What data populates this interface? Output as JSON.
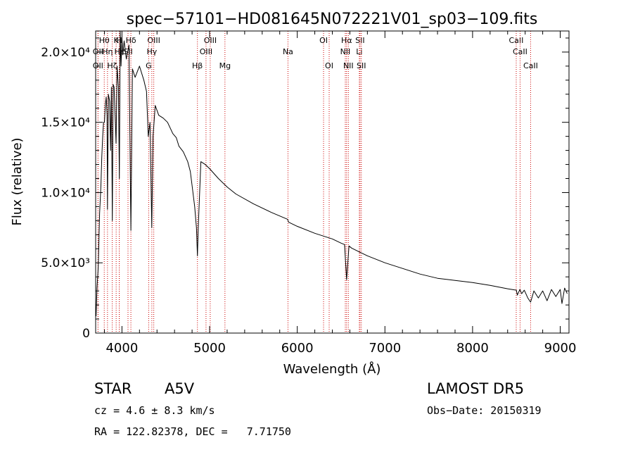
{
  "chart_data": {
    "type": "line",
    "title": "spec−57101−HD081645N072221V01_sp03−109.fits",
    "xlabel": "Wavelength (Å)",
    "ylabel": "Flux (relative)",
    "xlim": [
      3700,
      9100
    ],
    "ylim": [
      0,
      21500
    ],
    "x_ticks": [
      {
        "value": 4000,
        "label": "4000"
      },
      {
        "value": 5000,
        "label": "5000"
      },
      {
        "value": 6000,
        "label": "6000"
      },
      {
        "value": 7000,
        "label": "7000"
      },
      {
        "value": 8000,
        "label": "8000"
      },
      {
        "value": 9000,
        "label": "9000"
      }
    ],
    "y_ticks": [
      {
        "value": 0,
        "label": "0"
      },
      {
        "value": 5000,
        "label": "5.0×10³"
      },
      {
        "value": 10000,
        "label": "1.0×10⁴"
      },
      {
        "value": 15000,
        "label": "1.5×10⁴"
      },
      {
        "value": 20000,
        "label": "2.0×10⁴"
      }
    ],
    "grid": false,
    "line_color": "#000000",
    "marker_color": "#cc0000",
    "series": [
      {
        "x": [
          3705,
          3715,
          3730,
          3745,
          3760,
          3770,
          3780,
          3790,
          3800,
          3810,
          3820,
          3830,
          3835,
          3845,
          3860,
          3870,
          3880,
          3890,
          3900,
          3910,
          3925,
          3933,
          3945,
          3960,
          3970,
          3980,
          3990,
          4000,
          4010,
          4025,
          4050,
          4080,
          4102,
          4120,
          4150,
          4200,
          4250,
          4280,
          4300,
          4320,
          4340,
          4355,
          4380,
          4420,
          4470,
          4520,
          4580,
          4620,
          4650,
          4700,
          4750,
          4780,
          4800,
          4830,
          4850,
          4861,
          4872,
          4900,
          4950,
          5000,
          5100,
          5200,
          5300,
          5500,
          5700,
          5890,
          5900,
          6000,
          6200,
          6400,
          6500,
          6540,
          6563,
          6590,
          6620,
          6700,
          6800,
          7000,
          7200,
          7400,
          7600,
          7800,
          8000,
          8200,
          8400,
          8500,
          8510,
          8540,
          8560,
          8590,
          8630,
          8662,
          8700,
          8750,
          8800,
          8850,
          8900,
          8950,
          9000,
          9020,
          9050,
          9080
        ],
        "y": [
          1200,
          3200,
          4700,
          8500,
          10500,
          12500,
          14000,
          15000,
          15000,
          16200,
          16800,
          15500,
          8800,
          17000,
          16500,
          13000,
          17500,
          8000,
          17700,
          17500,
          15000,
          13500,
          19000,
          17500,
          11000,
          21500,
          19000,
          21000,
          19800,
          20800,
          19500,
          20500,
          7300,
          18800,
          18200,
          19000,
          18000,
          17200,
          14000,
          15000,
          7500,
          14000,
          16200,
          15500,
          15300,
          15000,
          14200,
          13900,
          13300,
          12900,
          12200,
          11500,
          10500,
          9000,
          7500,
          5500,
          7800,
          12200,
          12000,
          11700,
          11000,
          10400,
          9900,
          9200,
          8600,
          8100,
          7900,
          7600,
          7100,
          6700,
          6400,
          6300,
          3800,
          6200,
          6050,
          5800,
          5500,
          5000,
          4600,
          4200,
          3900,
          3750,
          3600,
          3400,
          3150,
          3050,
          2700,
          3100,
          2800,
          3050,
          2500,
          2200,
          3000,
          2500,
          3000,
          2300,
          3100,
          2600,
          3100,
          2100,
          3200,
          2800
        ]
      }
    ],
    "lines": [
      {
        "label": "Hθ",
        "x": 3798,
        "row": 1
      },
      {
        "label": "OII",
        "x": 3727,
        "row": 2
      },
      {
        "label": "OII",
        "x": 3727,
        "row": 3
      },
      {
        "label": "Hη",
        "x": 3835,
        "row": 2
      },
      {
        "label": "Hζ",
        "x": 3889,
        "row": 3
      },
      {
        "label": "Hε",
        "x": 3970,
        "row": 2
      },
      {
        "label": "K",
        "x": 3934,
        "row": 1
      },
      {
        "label": "H",
        "x": 3969,
        "row": 1
      },
      {
        "label": "SII",
        "x": 4069,
        "row": 2
      },
      {
        "label": "Hδ",
        "x": 4102,
        "row": 1
      },
      {
        "label": "OIII",
        "x": 4363,
        "row": 1
      },
      {
        "label": "Hγ",
        "x": 4341,
        "row": 2
      },
      {
        "label": "G",
        "x": 4305,
        "row": 3
      },
      {
        "label": "OIII",
        "x": 5007,
        "row": 1
      },
      {
        "label": "OIII",
        "x": 4959,
        "row": 2
      },
      {
        "label": "Hβ",
        "x": 4861,
        "row": 3
      },
      {
        "label": "Mg",
        "x": 5175,
        "row": 3
      },
      {
        "label": "Na",
        "x": 5894,
        "row": 2
      },
      {
        "label": "OI",
        "x": 6300,
        "row": 1
      },
      {
        "label": "OI",
        "x": 6364,
        "row": 3
      },
      {
        "label": "Hα",
        "x": 6563,
        "row": 1
      },
      {
        "label": "SII",
        "x": 6716,
        "row": 1
      },
      {
        "label": "NII",
        "x": 6548,
        "row": 2
      },
      {
        "label": "Li",
        "x": 6708,
        "row": 2
      },
      {
        "label": "NII",
        "x": 6583,
        "row": 3
      },
      {
        "label": "SII",
        "x": 6731,
        "row": 3
      },
      {
        "label": "CaII",
        "x": 8498,
        "row": 1
      },
      {
        "label": "CaII",
        "x": 8542,
        "row": 2
      },
      {
        "label": "CaII",
        "x": 8662,
        "row": 3
      }
    ]
  },
  "info": {
    "object_type": "STAR",
    "subclass": "A5V",
    "survey": "LAMOST DR5",
    "cz": "cz = 4.6 ± 8.3 km/s",
    "obs_date": "Obs−Date: 20150319",
    "coords": "RA = 122.82378, DEC =   7.71750"
  }
}
